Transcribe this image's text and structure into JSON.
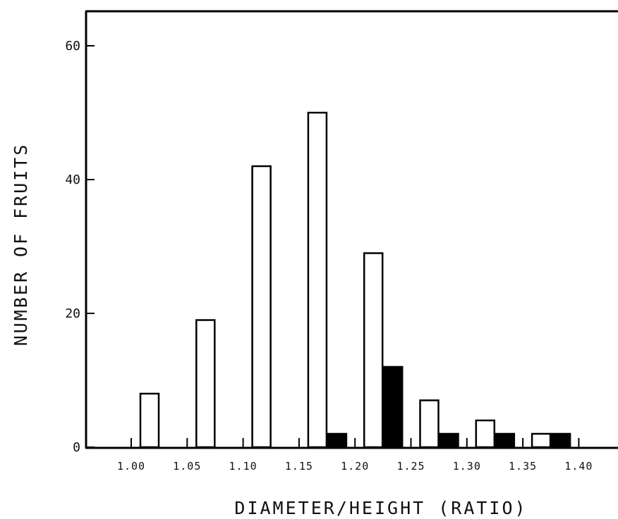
{
  "chart_data": {
    "type": "bar",
    "title": "",
    "xlabel": "DIAMETER/HEIGHT (RATIO)",
    "ylabel": "NUMBER OF FRUITS",
    "categories": [
      "1.00",
      "1.05",
      "1.10",
      "1.15",
      "1.20",
      "1.25",
      "1.30",
      "1.35",
      "1.40"
    ],
    "ylim": [
      0,
      65
    ],
    "yticks": [
      0,
      20,
      40,
      60
    ],
    "grid": false,
    "legend": "none",
    "series": [
      {
        "fill": "#ffffff",
        "values": [
          8,
          19,
          42,
          50,
          29,
          7,
          4,
          2,
          0
        ]
      },
      {
        "fill": "#000000",
        "values": [
          0,
          0,
          0,
          2,
          12,
          2,
          2,
          2,
          0
        ]
      }
    ]
  }
}
